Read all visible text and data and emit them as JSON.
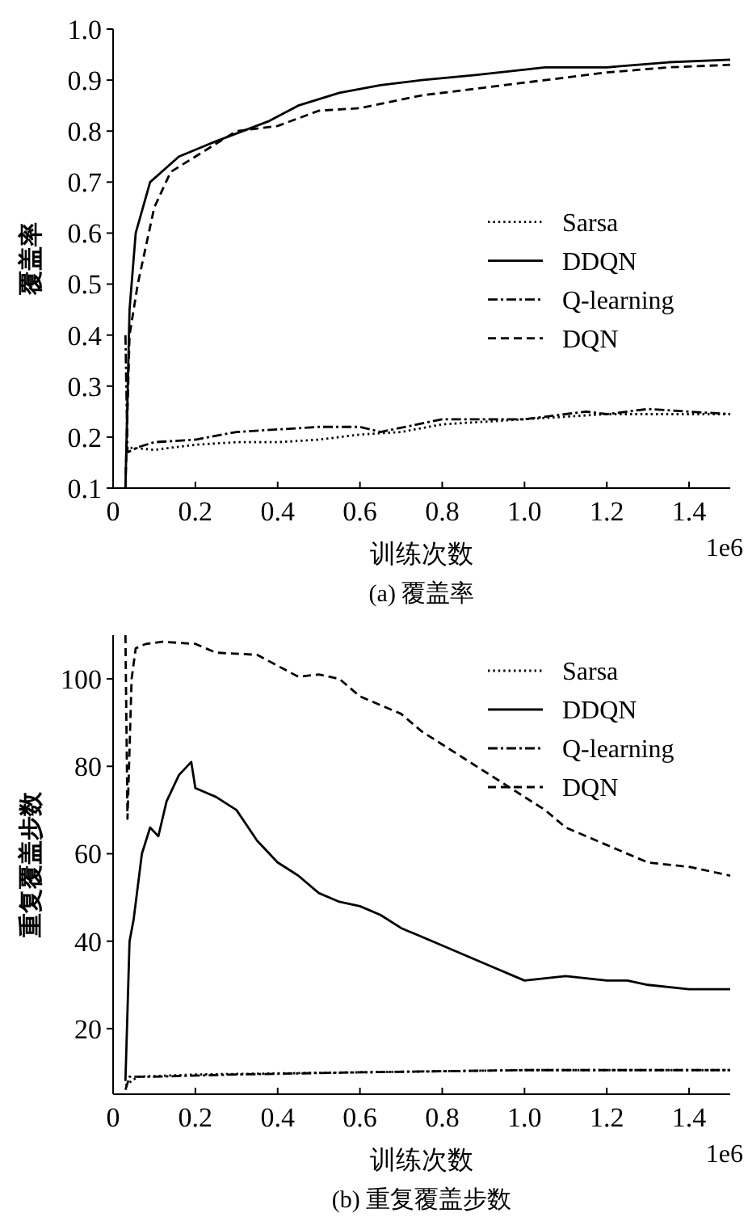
{
  "chart_data": [
    {
      "type": "line",
      "title": "(a) 覆盖率",
      "xlabel": "训练次数",
      "ylabel": "覆盖率",
      "annotations": [
        "1e6"
      ],
      "xlim": [
        0,
        1.5
      ],
      "xticks": [
        0,
        0.2,
        0.4,
        0.6,
        0.8,
        {
          "value": 1.0,
          "label": "1.0"
        },
        1.2,
        1.4
      ],
      "ylim": [
        0.1,
        1.0
      ],
      "yticks": [
        0.1,
        0.2,
        0.3,
        0.4,
        0.5,
        0.6,
        0.7,
        0.8,
        0.9,
        {
          "value": 1.0,
          "label": "1.0"
        }
      ],
      "legend": "right",
      "grid": false,
      "series": [
        {
          "name": "Sarsa",
          "color": "#000000",
          "line_style": "dotted",
          "x": [
            0.03,
            0.1,
            0.2,
            0.3,
            0.4,
            0.5,
            0.6,
            0.7,
            0.8,
            0.9,
            1.0,
            1.1,
            1.2,
            1.3,
            1.5
          ],
          "values": [
            0.18,
            0.175,
            0.185,
            0.19,
            0.19,
            0.195,
            0.205,
            0.21,
            0.225,
            0.23,
            0.235,
            0.24,
            0.245,
            0.245,
            0.245
          ]
        },
        {
          "name": "DDQN",
          "color": "#000000",
          "line_style": "solid",
          "x": [
            0.03,
            0.04,
            0.055,
            0.09,
            0.16,
            0.25,
            0.38,
            0.45,
            0.55,
            0.65,
            0.75,
            0.88,
            1.05,
            1.2,
            1.35,
            1.5
          ],
          "values": [
            0.1,
            0.45,
            0.6,
            0.7,
            0.75,
            0.78,
            0.82,
            0.85,
            0.875,
            0.89,
            0.9,
            0.91,
            0.925,
            0.925,
            0.935,
            0.94
          ]
        },
        {
          "name": "Q-learning",
          "color": "#000000",
          "line_style": "dashdot",
          "x": [
            0.03,
            0.035,
            0.06,
            0.1,
            0.2,
            0.3,
            0.4,
            0.5,
            0.6,
            0.65,
            0.8,
            0.9,
            1.0,
            1.15,
            1.2,
            1.3,
            1.4,
            1.5
          ],
          "values": [
            0.4,
            0.17,
            0.18,
            0.19,
            0.195,
            0.21,
            0.215,
            0.22,
            0.22,
            0.21,
            0.235,
            0.235,
            0.235,
            0.25,
            0.245,
            0.255,
            0.25,
            0.245
          ]
        },
        {
          "name": "DQN",
          "color": "#000000",
          "line_style": "dashed",
          "x": [
            0.03,
            0.04,
            0.06,
            0.1,
            0.14,
            0.2,
            0.3,
            0.4,
            0.5,
            0.6,
            0.75,
            0.9,
            1.05,
            1.2,
            1.35,
            1.5
          ],
          "values": [
            0.1,
            0.4,
            0.5,
            0.65,
            0.72,
            0.75,
            0.8,
            0.81,
            0.84,
            0.845,
            0.87,
            0.885,
            0.9,
            0.915,
            0.925,
            0.93
          ]
        }
      ]
    },
    {
      "type": "line",
      "title": "(b) 重复覆盖步数",
      "xlabel": "训练次数",
      "ylabel": "重复覆盖步数",
      "annotations": [
        "1e6"
      ],
      "xlim": [
        0,
        1.5
      ],
      "xticks": [
        0,
        0.2,
        0.4,
        0.6,
        0.8,
        {
          "value": 1.0,
          "label": "1.0"
        },
        1.2,
        1.4
      ],
      "ylim": [
        5,
        110
      ],
      "yticks": [
        20,
        40,
        60,
        80,
        100
      ],
      "legend": "top right",
      "grid": false,
      "series": [
        {
          "name": "Sarsa",
          "color": "#000000",
          "line_style": "dotted",
          "x": [
            0.03,
            0.06,
            0.2,
            0.6,
            1.0,
            1.5
          ],
          "values": [
            7,
            9,
            9.5,
            10,
            10.5,
            10.5
          ]
        },
        {
          "name": "DDQN",
          "color": "#000000",
          "line_style": "solid",
          "x": [
            0.03,
            0.04,
            0.05,
            0.07,
            0.09,
            0.11,
            0.13,
            0.16,
            0.19,
            0.2,
            0.25,
            0.3,
            0.35,
            0.4,
            0.45,
            0.5,
            0.55,
            0.6,
            0.65,
            0.7,
            0.8,
            0.9,
            1.0,
            1.1,
            1.2,
            1.25,
            1.3,
            1.4,
            1.5
          ],
          "values": [
            8,
            40,
            45,
            60,
            66,
            64,
            72,
            78,
            81,
            75,
            73,
            70,
            63,
            58,
            55,
            51,
            49,
            48,
            46,
            43,
            39,
            35,
            31,
            32,
            31,
            31,
            30,
            29,
            29
          ]
        },
        {
          "name": "Q-learning",
          "color": "#000000",
          "line_style": "dashdot",
          "x": [
            0.03,
            0.04,
            0.1,
            0.3,
            0.6,
            1.0,
            1.5
          ],
          "values": [
            6,
            9,
            9,
            9.5,
            10,
            10.5,
            10.5
          ]
        },
        {
          "name": "DQN",
          "color": "#000000",
          "line_style": "dashed",
          "x": [
            0.03,
            0.035,
            0.045,
            0.055,
            0.08,
            0.12,
            0.2,
            0.25,
            0.35,
            0.4,
            0.45,
            0.5,
            0.55,
            0.6,
            0.65,
            0.7,
            0.75,
            0.8,
            0.85,
            0.9,
            0.95,
            1.0,
            1.05,
            1.1,
            1.2,
            1.3,
            1.4,
            1.5
          ],
          "values": [
            110,
            68,
            100,
            107,
            108,
            108.5,
            108,
            106,
            105.5,
            103,
            100.5,
            101,
            100,
            96,
            94,
            92,
            88,
            85,
            82,
            79,
            76,
            73,
            70,
            66,
            62,
            58,
            57,
            55
          ]
        }
      ]
    }
  ]
}
